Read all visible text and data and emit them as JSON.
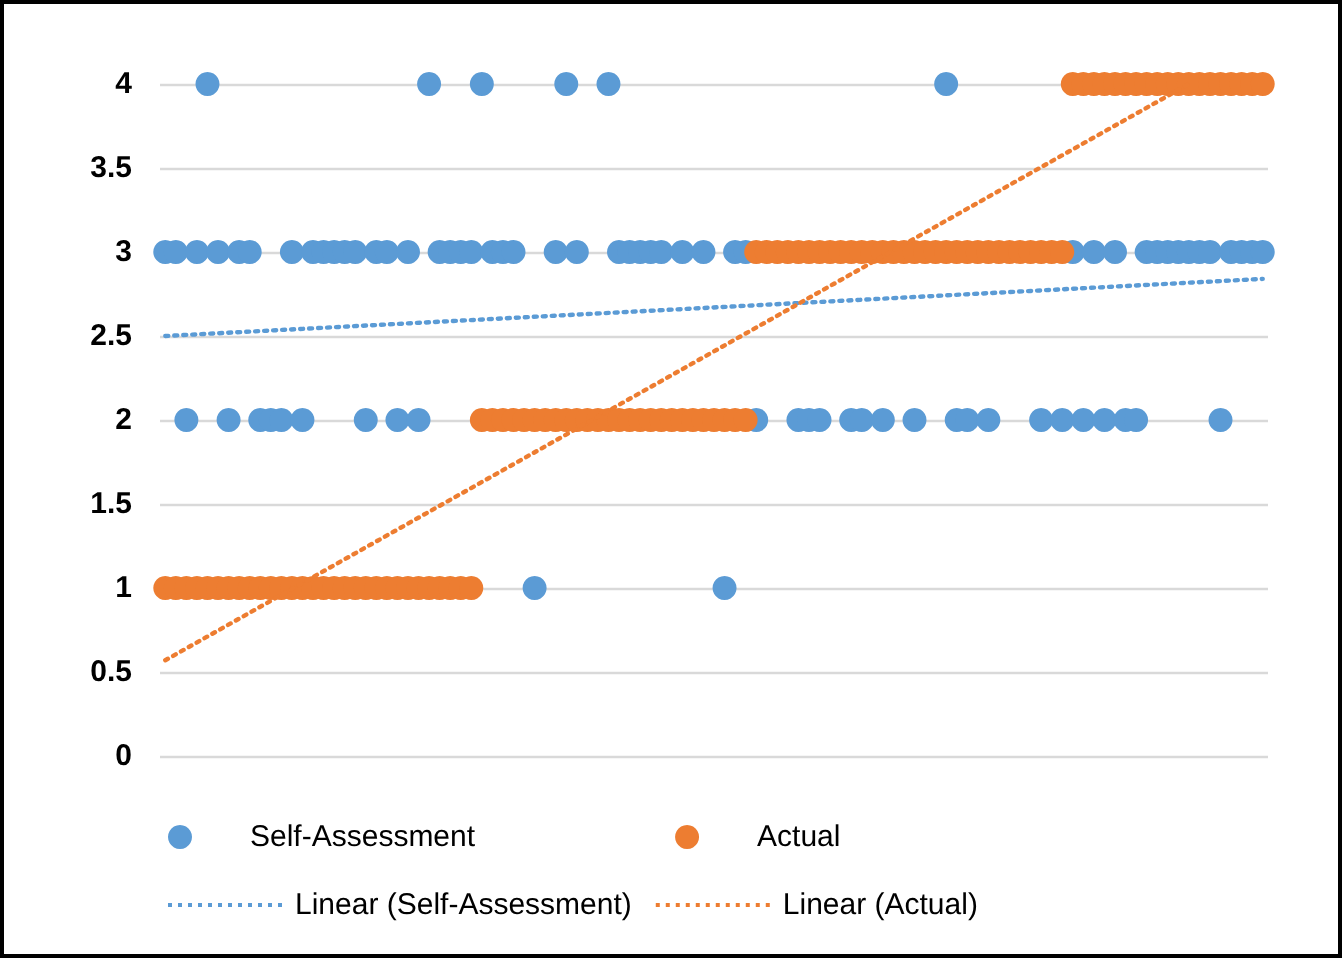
{
  "chart_data": {
    "type": "scatter",
    "categories": [
      null,
      null,
      null,
      null,
      null,
      null,
      null,
      null,
      null,
      null,
      null,
      null,
      null,
      null,
      null,
      null,
      null,
      null,
      null,
      null,
      null,
      null,
      null,
      null,
      null,
      null,
      null,
      null,
      null,
      null,
      null,
      null,
      null,
      null,
      null,
      null,
      null,
      null,
      null,
      null,
      null,
      null,
      null,
      null,
      null,
      null,
      null,
      null,
      null,
      null,
      null,
      null,
      null,
      null,
      null,
      null,
      null,
      null,
      null,
      null,
      null,
      null,
      null,
      null,
      null,
      null,
      null,
      null,
      null,
      null,
      null,
      null,
      null,
      null,
      null,
      null,
      null,
      null,
      null,
      null,
      null,
      null,
      null,
      null,
      null,
      null,
      null,
      null,
      null,
      null,
      null,
      null,
      null,
      null,
      null,
      null,
      null,
      null,
      null,
      null,
      null,
      null,
      null,
      null,
      null
    ],
    "ylim": [
      0,
      4
    ],
    "yticks": [
      0,
      0.5,
      1,
      1.5,
      2,
      2.5,
      3,
      3.5,
      4
    ],
    "tick_labels": "y",
    "grid": "y",
    "legend": "bottom",
    "series": [
      {
        "name": "Self-Assessment",
        "color": "#5b9bd5",
        "marker": "circle",
        "values": [
          3,
          3,
          2,
          3,
          4,
          3,
          2,
          3,
          3,
          2,
          2,
          2,
          3,
          2,
          3,
          3,
          3,
          3,
          3,
          2,
          3,
          3,
          2,
          3,
          2,
          4,
          3,
          3,
          3,
          3,
          4,
          3,
          3,
          3,
          null,
          1,
          null,
          3,
          4,
          3,
          null,
          null,
          4,
          3,
          3,
          3,
          3,
          3,
          null,
          3,
          null,
          3,
          null,
          1,
          3,
          3,
          2,
          null,
          null,
          null,
          2,
          2,
          2,
          null,
          null,
          2,
          2,
          null,
          2,
          null,
          null,
          2,
          null,
          null,
          4,
          2,
          2,
          null,
          2,
          null,
          null,
          null,
          null,
          2,
          null,
          2,
          3,
          2,
          3,
          2,
          3,
          2,
          2,
          3,
          3,
          3,
          3,
          3,
          3,
          3,
          2,
          3,
          3,
          3,
          3
        ]
      },
      {
        "name": "Actual",
        "color": "#ed7d31",
        "marker": "circle",
        "values": [
          1,
          1,
          1,
          1,
          1,
          1,
          1,
          1,
          1,
          1,
          1,
          1,
          1,
          1,
          1,
          1,
          1,
          1,
          1,
          1,
          1,
          1,
          1,
          1,
          1,
          1,
          1,
          1,
          1,
          1,
          2,
          2,
          2,
          2,
          2,
          2,
          2,
          2,
          2,
          2,
          2,
          2,
          2,
          2,
          2,
          2,
          2,
          2,
          2,
          2,
          2,
          2,
          2,
          2,
          2,
          2,
          3,
          3,
          3,
          3,
          3,
          3,
          3,
          3,
          3,
          3,
          3,
          3,
          3,
          3,
          3,
          3,
          3,
          3,
          3,
          3,
          3,
          3,
          3,
          3,
          3,
          3,
          3,
          3,
          3,
          3,
          4,
          4,
          4,
          4,
          4,
          4,
          4,
          4,
          4,
          4,
          4,
          4,
          4,
          4,
          4,
          4,
          4,
          4,
          4
        ]
      },
      {
        "name": "Linear (Self-Assessment)",
        "type": "line",
        "color": "#5b9bd5",
        "line_style": "dotted",
        "values": [
          2.5,
          null,
          null,
          null,
          null,
          null,
          null,
          null,
          null,
          null,
          null,
          null,
          null,
          null,
          null,
          null,
          null,
          null,
          null,
          null,
          null,
          null,
          null,
          null,
          null,
          null,
          null,
          null,
          null,
          null,
          null,
          null,
          null,
          null,
          null,
          null,
          null,
          null,
          null,
          null,
          null,
          null,
          null,
          null,
          null,
          null,
          null,
          null,
          null,
          null,
          null,
          null,
          null,
          null,
          null,
          null,
          null,
          null,
          null,
          null,
          null,
          null,
          null,
          null,
          null,
          null,
          null,
          null,
          null,
          null,
          null,
          null,
          null,
          null,
          null,
          null,
          null,
          null,
          null,
          null,
          null,
          null,
          null,
          null,
          null,
          null,
          null,
          null,
          null,
          null,
          null,
          null,
          null,
          null,
          null,
          null,
          null,
          null,
          null,
          null,
          null,
          null,
          null,
          null,
          2.84
        ]
      },
      {
        "name": "Linear (Actual)",
        "type": "line",
        "color": "#ed7d31",
        "line_style": "dotted",
        "values": [
          0.57,
          null,
          null,
          null,
          null,
          null,
          null,
          null,
          null,
          null,
          null,
          null,
          null,
          null,
          null,
          null,
          null,
          null,
          null,
          null,
          null,
          null,
          null,
          null,
          null,
          null,
          null,
          null,
          null,
          null,
          null,
          null,
          null,
          null,
          null,
          null,
          null,
          null,
          null,
          null,
          null,
          null,
          null,
          null,
          null,
          null,
          null,
          null,
          null,
          null,
          null,
          null,
          null,
          null,
          null,
          null,
          null,
          null,
          null,
          null,
          null,
          null,
          null,
          null,
          null,
          null,
          null,
          null,
          null,
          null,
          null,
          null,
          null,
          null,
          null,
          null,
          null,
          null,
          null,
          null,
          null,
          null,
          null,
          null,
          null,
          null,
          null,
          null,
          null,
          null,
          null,
          null,
          null,
          null,
          null,
          null,
          null,
          4.0,
          null,
          null,
          null,
          null,
          null,
          null,
          null
        ]
      }
    ]
  }
}
